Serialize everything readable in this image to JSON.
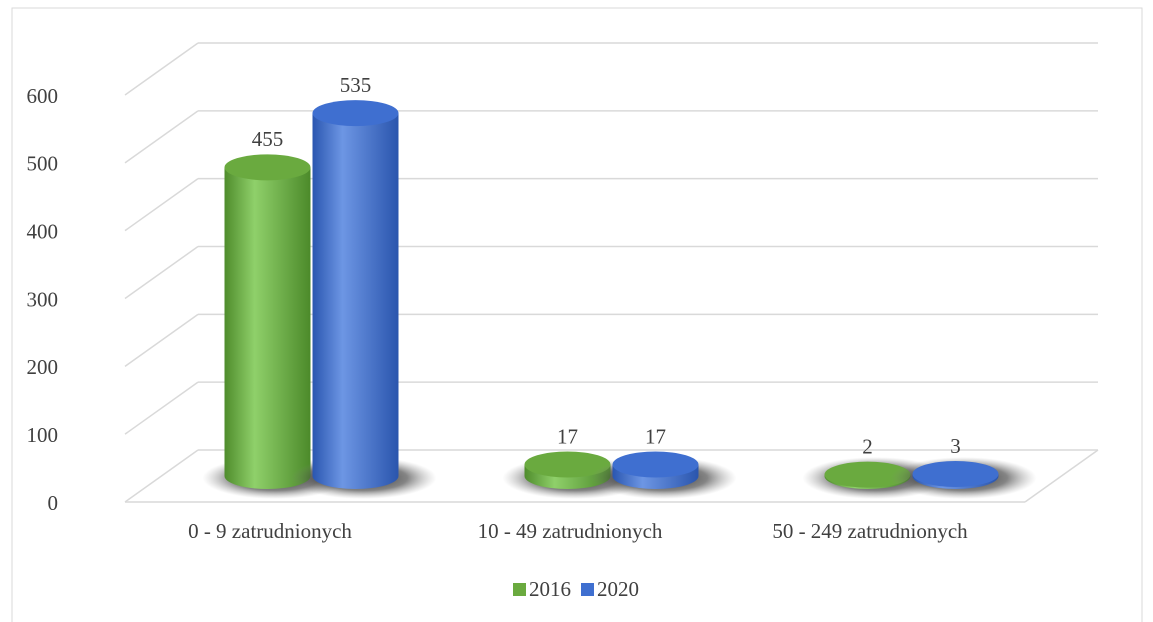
{
  "chart_data": {
    "type": "bar3d",
    "categories": [
      "0 - 9 zatrudnionych",
      "10 - 49 zatrudnionych",
      "50 - 249 zatrudnionych"
    ],
    "series": [
      {
        "name": "2016",
        "color": "#6aaa3f",
        "values": [
          455,
          17,
          2
        ]
      },
      {
        "name": "2020",
        "color": "#3f6fd0",
        "values": [
          535,
          17,
          3
        ]
      }
    ],
    "ylim": [
      0,
      600
    ],
    "yticks": [
      0,
      100,
      200,
      300,
      400,
      500,
      600
    ],
    "grid": true,
    "legend": "bottom"
  }
}
